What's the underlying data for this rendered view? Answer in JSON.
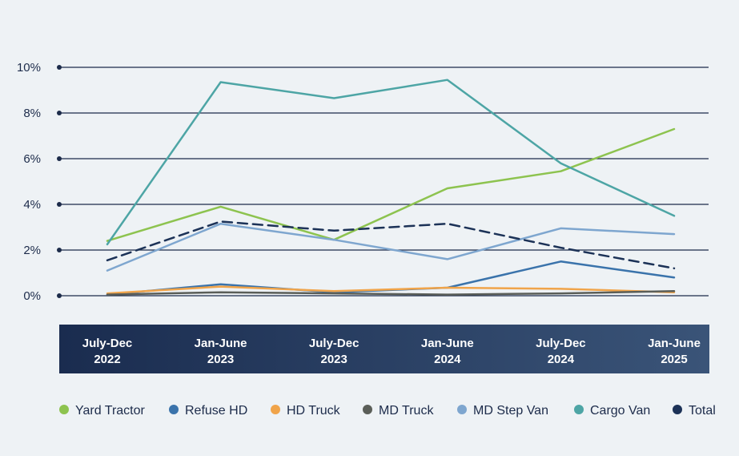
{
  "chart_data": {
    "type": "line",
    "categories": [
      [
        "July-Dec",
        "2022"
      ],
      [
        "Jan-June",
        "2023"
      ],
      [
        "July-Dec",
        "2023"
      ],
      [
        "Jan-June",
        "2024"
      ],
      [
        "July-Dec",
        "2024"
      ],
      [
        "Jan-June",
        "2025"
      ]
    ],
    "y_ticks": [
      "0%",
      "2%",
      "4%",
      "6%",
      "8%",
      "10%"
    ],
    "ylim": [
      0,
      10
    ],
    "grid": "horizontal",
    "legend_position": "bottom",
    "series": [
      {
        "name": "Yard Tractor",
        "color": "#8dc34f",
        "dashed": false,
        "values": [
          2.4,
          3.9,
          2.45,
          4.7,
          5.45,
          7.3
        ]
      },
      {
        "name": "Refuse HD",
        "color": "#3a73ab",
        "dashed": false,
        "values": [
          0.05,
          0.5,
          0.15,
          0.35,
          1.5,
          0.8
        ]
      },
      {
        "name": "HD Truck",
        "color": "#f0a44a",
        "dashed": false,
        "values": [
          0.1,
          0.4,
          0.2,
          0.35,
          0.3,
          0.15
        ]
      },
      {
        "name": "MD Truck",
        "color": "#5a5e58",
        "dashed": false,
        "values": [
          0.05,
          0.15,
          0.1,
          0.05,
          0.1,
          0.2
        ]
      },
      {
        "name": "MD Step Van",
        "color": "#7ea6cf",
        "dashed": false,
        "values": [
          1.1,
          3.15,
          2.45,
          1.6,
          2.95,
          2.7
        ]
      },
      {
        "name": "Cargo Van",
        "color": "#4da5a5",
        "dashed": false,
        "values": [
          2.25,
          9.35,
          8.65,
          9.45,
          5.8,
          3.5
        ]
      },
      {
        "name": "Total",
        "color": "#1c3257",
        "dashed": true,
        "values": [
          1.55,
          3.25,
          2.85,
          3.15,
          2.1,
          1.2
        ]
      }
    ]
  }
}
